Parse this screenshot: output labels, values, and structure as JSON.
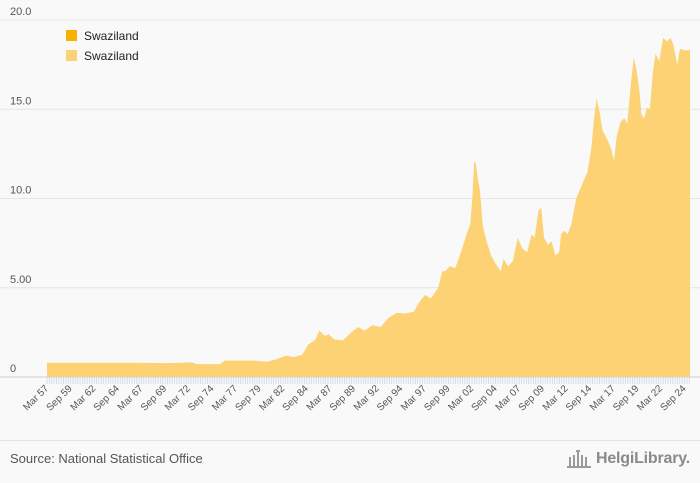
{
  "chart_data": {
    "type": "area",
    "legend": [
      {
        "label": "Swaziland",
        "color": "#f7b100"
      },
      {
        "label": "Swaziland",
        "color": "#fcd275"
      }
    ],
    "legend_position": "top-left",
    "series_color": "#fcd275",
    "ylim": [
      0,
      20
    ],
    "yticks": [
      {
        "value": 0,
        "label": "0"
      },
      {
        "value": 5,
        "label": "5.00"
      },
      {
        "value": 10,
        "label": "10.0"
      },
      {
        "value": 15,
        "label": "15.0"
      },
      {
        "value": 20,
        "label": "20.0"
      }
    ],
    "xlim": [
      1957.17,
      2025.25
    ],
    "xtick_labels": [
      "Mar 57",
      "Sep 59",
      "Mar 62",
      "Sep 64",
      "Mar 67",
      "Sep 69",
      "Mar 72",
      "Sep 74",
      "Mar 77",
      "Sep 79",
      "Mar 82",
      "Sep 84",
      "Mar 87",
      "Sep 89",
      "Mar 92",
      "Sep 94",
      "Mar 97",
      "Sep 99",
      "Mar 02",
      "Sep 04",
      "Mar 07",
      "Sep 09",
      "Mar 12",
      "Sep 14",
      "Mar 17",
      "Sep 19",
      "Mar 22",
      "Sep 24"
    ],
    "xtick_values": [
      1957.17,
      1959.67,
      1962.17,
      1964.67,
      1967.17,
      1969.67,
      1972.17,
      1974.67,
      1977.17,
      1979.67,
      1982.17,
      1984.67,
      1987.17,
      1989.67,
      1992.17,
      1994.67,
      1997.17,
      1999.67,
      2002.17,
      2004.67,
      2007.17,
      2009.67,
      2012.17,
      2014.67,
      2017.17,
      2019.67,
      2022.17,
      2024.67
    ],
    "points": [
      [
        1957.17,
        0.8
      ],
      [
        1966.0,
        0.8
      ],
      [
        1970.0,
        0.78
      ],
      [
        1972.5,
        0.82
      ],
      [
        1973.0,
        0.72
      ],
      [
        1975.5,
        0.72
      ],
      [
        1976.0,
        0.92
      ],
      [
        1979.0,
        0.92
      ],
      [
        1980.5,
        0.85
      ],
      [
        1981.5,
        1.0
      ],
      [
        1982.5,
        1.2
      ],
      [
        1983.3,
        1.12
      ],
      [
        1984.2,
        1.25
      ],
      [
        1984.8,
        1.8
      ],
      [
        1985.6,
        2.1
      ],
      [
        1986.0,
        2.6
      ],
      [
        1986.6,
        2.3
      ],
      [
        1987.0,
        2.4
      ],
      [
        1987.6,
        2.1
      ],
      [
        1988.5,
        2.05
      ],
      [
        1989.4,
        2.5
      ],
      [
        1990.1,
        2.8
      ],
      [
        1990.8,
        2.6
      ],
      [
        1991.6,
        2.9
      ],
      [
        1992.5,
        2.8
      ],
      [
        1993.3,
        3.3
      ],
      [
        1994.2,
        3.6
      ],
      [
        1995.0,
        3.55
      ],
      [
        1996.0,
        3.65
      ],
      [
        1996.6,
        4.2
      ],
      [
        1997.2,
        4.6
      ],
      [
        1997.8,
        4.4
      ],
      [
        1998.6,
        5.0
      ],
      [
        1999.0,
        5.9
      ],
      [
        1999.4,
        5.95
      ],
      [
        1999.8,
        6.2
      ],
      [
        2000.4,
        6.1
      ],
      [
        2001.0,
        7.0
      ],
      [
        2001.6,
        8.0
      ],
      [
        2002.0,
        8.6
      ],
      [
        2002.2,
        10.0
      ],
      [
        2002.4,
        12.1
      ],
      [
        2002.6,
        11.9
      ],
      [
        2002.8,
        11.0
      ],
      [
        2003.0,
        10.5
      ],
      [
        2003.3,
        8.5
      ],
      [
        2003.7,
        7.6
      ],
      [
        2004.2,
        6.8
      ],
      [
        2004.6,
        6.4
      ],
      [
        2005.0,
        6.1
      ],
      [
        2005.2,
        5.9
      ],
      [
        2005.5,
        6.6
      ],
      [
        2006.0,
        6.2
      ],
      [
        2006.5,
        6.5
      ],
      [
        2007.0,
        7.8
      ],
      [
        2007.5,
        7.2
      ],
      [
        2008.0,
        7.0
      ],
      [
        2008.5,
        8.0
      ],
      [
        2008.8,
        7.8
      ],
      [
        2009.2,
        9.3
      ],
      [
        2009.5,
        9.5
      ],
      [
        2009.8,
        7.8
      ],
      [
        2010.2,
        7.4
      ],
      [
        2010.6,
        7.6
      ],
      [
        2011.0,
        6.8
      ],
      [
        2011.4,
        7.0
      ],
      [
        2011.6,
        8.0
      ],
      [
        2011.9,
        8.2
      ],
      [
        2012.3,
        8.0
      ],
      [
        2012.7,
        8.6
      ],
      [
        2013.2,
        10.0
      ],
      [
        2013.6,
        10.5
      ],
      [
        2014.0,
        11.0
      ],
      [
        2014.4,
        11.5
      ],
      [
        2014.8,
        12.8
      ],
      [
        2015.1,
        14.5
      ],
      [
        2015.35,
        15.6
      ],
      [
        2015.7,
        14.8
      ],
      [
        2016.0,
        13.8
      ],
      [
        2016.5,
        13.3
      ],
      [
        2016.9,
        12.8
      ],
      [
        2017.2,
        12.1
      ],
      [
        2017.5,
        13.5
      ],
      [
        2017.9,
        14.3
      ],
      [
        2018.3,
        14.5
      ],
      [
        2018.6,
        14.2
      ],
      [
        2019.0,
        16.5
      ],
      [
        2019.3,
        17.9
      ],
      [
        2019.6,
        17.2
      ],
      [
        2019.9,
        16.0
      ],
      [
        2020.1,
        14.7
      ],
      [
        2020.4,
        14.5
      ],
      [
        2020.7,
        15.1
      ],
      [
        2021.0,
        15.0
      ],
      [
        2021.3,
        17.0
      ],
      [
        2021.6,
        18.1
      ],
      [
        2022.0,
        17.7
      ],
      [
        2022.4,
        19.0
      ],
      [
        2022.8,
        18.8
      ],
      [
        2023.2,
        19.0
      ],
      [
        2023.5,
        18.6
      ],
      [
        2023.9,
        17.5
      ],
      [
        2024.2,
        18.4
      ],
      [
        2024.6,
        18.3
      ],
      [
        2025.25,
        18.3
      ]
    ]
  },
  "footer": {
    "source": "Source: National Statistical Office",
    "logo_text": "HelgiLibrary."
  }
}
